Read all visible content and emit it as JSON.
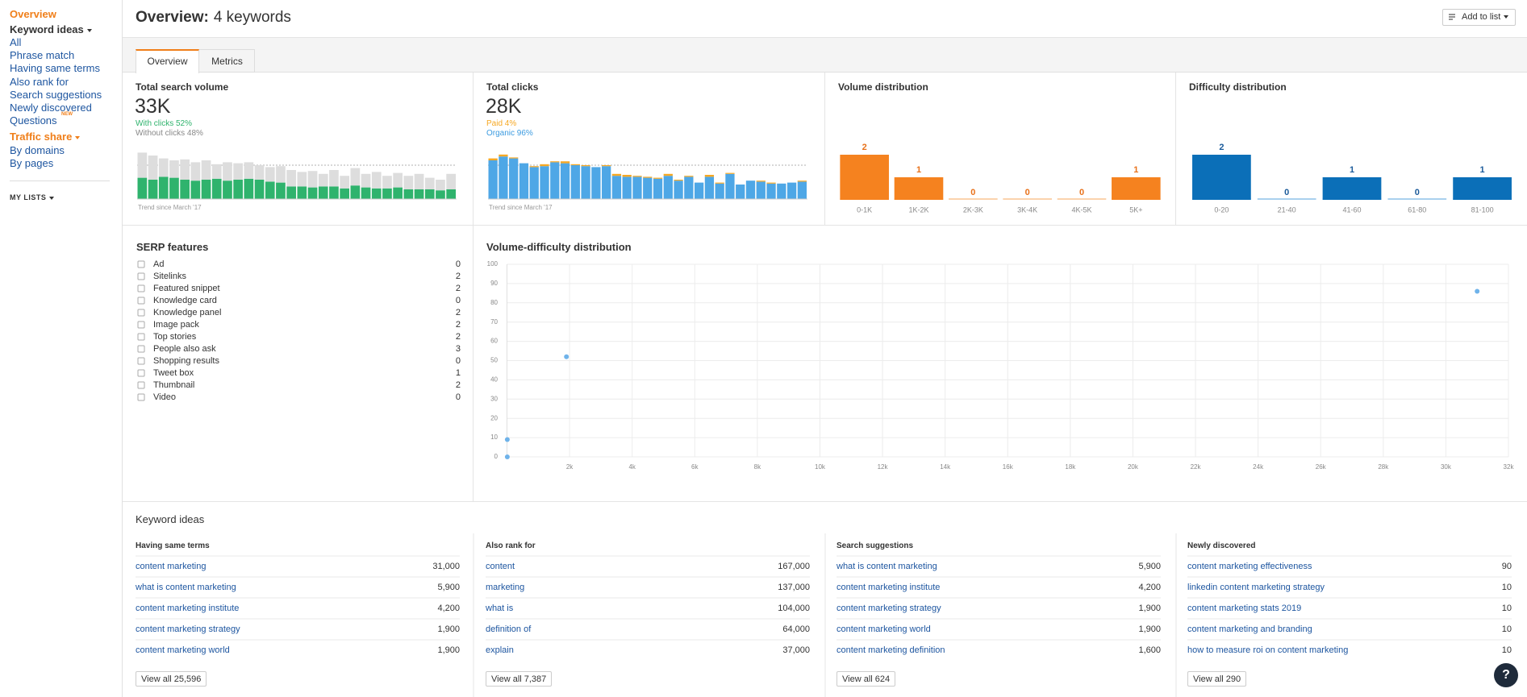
{
  "sidebar": {
    "overview": "Overview",
    "keyword_ideas": "Keyword ideas",
    "links": [
      "All",
      "Phrase match",
      "Having same terms",
      "Also rank for",
      "Search suggestions",
      "Newly discovered",
      "Questions"
    ],
    "new_badge": "NEW",
    "traffic_share": "Traffic share",
    "traffic_links": [
      "By domains",
      "By pages"
    ],
    "my_lists": "MY LISTS"
  },
  "header": {
    "title": "Overview:",
    "subtitle": "4 keywords",
    "button": "Add to list"
  },
  "tabs": [
    "Overview",
    "Metrics"
  ],
  "search_volume": {
    "title": "Total search volume",
    "value": "33K",
    "with_clicks": "With clicks 52%",
    "without_clicks": "Without clicks 48%",
    "trend_label": "Trend since March '17",
    "trend": {
      "type": "stacked-bar",
      "series": [
        {
          "color": "#2fb36d",
          "values": [
            22,
            20,
            23,
            22,
            20,
            19,
            20,
            21,
            19,
            20,
            21,
            20,
            18,
            17,
            13,
            13,
            12,
            13,
            13,
            11,
            14,
            12,
            11,
            11,
            12,
            10,
            10,
            10,
            9,
            10
          ]
        },
        {
          "color": "#dddddd",
          "values": [
            26,
            25,
            19,
            18,
            21,
            19,
            20,
            15,
            19,
            17,
            17,
            15,
            15,
            17,
            17,
            15,
            17,
            13,
            17,
            13,
            18,
            14,
            17,
            13,
            15,
            14,
            16,
            12,
            11,
            16
          ]
        }
      ]
    }
  },
  "clicks": {
    "title": "Total clicks",
    "value": "28K",
    "paid": "Paid 4%",
    "organic": "Organic 96%",
    "trend_label": "Trend since March '17",
    "trend": {
      "type": "stacked-bar",
      "series": [
        {
          "color": "#4ea7e6",
          "values": [
            40,
            44,
            42,
            37,
            33,
            34,
            38,
            37,
            35,
            34,
            33,
            34,
            24,
            23,
            23,
            22,
            21,
            24,
            19,
            23,
            17,
            23,
            16,
            26,
            15,
            19,
            18,
            16,
            16,
            17,
            18
          ]
        },
        {
          "color": "#f6a823",
          "values": [
            2,
            2,
            1,
            0,
            1,
            2,
            1,
            2,
            1,
            1,
            0,
            1,
            2,
            2,
            1,
            1,
            1,
            2,
            1,
            1,
            0,
            2,
            1,
            1,
            0,
            0,
            1,
            1,
            0,
            0,
            1
          ]
        }
      ]
    }
  },
  "volume_distribution": {
    "type": "bar",
    "title": "Volume distribution",
    "categories": [
      "0-1K",
      "1K-2K",
      "2K-3K",
      "3K-4K",
      "4K-5K",
      "5K+"
    ],
    "values": [
      2,
      1,
      0,
      0,
      0,
      1
    ],
    "color": "#f5821f",
    "label_color": "#e8711a",
    "zero_color": "#fbd3ad"
  },
  "difficulty_distribution": {
    "type": "bar",
    "title": "Difficulty distribution",
    "categories": [
      "0-20",
      "21-40",
      "41-60",
      "61-80",
      "81-100"
    ],
    "values": [
      2,
      0,
      1,
      0,
      1
    ],
    "color": "#0b6fb8",
    "label_color": "#1a5a9a",
    "zero_color": "#a9d0ee"
  },
  "serp_features": {
    "title": "SERP features",
    "rows": [
      [
        "Ad",
        0
      ],
      [
        "Sitelinks",
        2
      ],
      [
        "Featured snippet",
        2
      ],
      [
        "Knowledge card",
        0
      ],
      [
        "Knowledge panel",
        2
      ],
      [
        "Image pack",
        2
      ],
      [
        "Top stories",
        2
      ],
      [
        "People also ask",
        3
      ],
      [
        "Shopping results",
        0
      ],
      [
        "Tweet box",
        1
      ],
      [
        "Thumbnail",
        2
      ],
      [
        "Video",
        0
      ]
    ]
  },
  "scatter": {
    "type": "scatter",
    "title": "Volume-difficulty distribution",
    "x": [
      31000,
      1900,
      10,
      10
    ],
    "y": [
      86,
      52,
      9,
      0
    ],
    "xlim": [
      0,
      32000
    ],
    "ylim": [
      0,
      100
    ],
    "xticks": [
      {
        "value": 2000,
        "label": "2k"
      },
      {
        "value": 4000,
        "label": "4k"
      },
      {
        "value": 6000,
        "label": "6k"
      },
      {
        "value": 8000,
        "label": "8k"
      },
      {
        "value": 10000,
        "label": "10k"
      },
      {
        "value": 12000,
        "label": "12k"
      },
      {
        "value": 14000,
        "label": "14k"
      },
      {
        "value": 16000,
        "label": "16k"
      },
      {
        "value": 18000,
        "label": "18k"
      },
      {
        "value": 20000,
        "label": "20k"
      },
      {
        "value": 22000,
        "label": "22k"
      },
      {
        "value": 24000,
        "label": "24k"
      },
      {
        "value": 26000,
        "label": "26k"
      },
      {
        "value": 28000,
        "label": "28k"
      },
      {
        "value": 30000,
        "label": "30k"
      },
      {
        "value": 32000,
        "label": "32k"
      }
    ],
    "yticks": [
      0,
      10,
      20,
      30,
      40,
      50,
      60,
      70,
      80,
      90,
      100
    ],
    "color": "#6fb3ea",
    "grid": true
  },
  "keyword_ideas": {
    "title": "Keyword ideas",
    "columns": [
      {
        "title": "Having same terms",
        "rows": [
          [
            "content marketing",
            "31,000"
          ],
          [
            "what is content marketing",
            "5,900"
          ],
          [
            "content marketing institute",
            "4,200"
          ],
          [
            "content marketing strategy",
            "1,900"
          ],
          [
            "content marketing world",
            "1,900"
          ]
        ],
        "button": "View all 25,596"
      },
      {
        "title": "Also rank for",
        "rows": [
          [
            "content",
            "167,000"
          ],
          [
            "marketing",
            "137,000"
          ],
          [
            "what is",
            "104,000"
          ],
          [
            "definition of",
            "64,000"
          ],
          [
            "explain",
            "37,000"
          ]
        ],
        "button": "View all 7,387"
      },
      {
        "title": "Search suggestions",
        "rows": [
          [
            "what is content marketing",
            "5,900"
          ],
          [
            "content marketing institute",
            "4,200"
          ],
          [
            "content marketing strategy",
            "1,900"
          ],
          [
            "content marketing world",
            "1,900"
          ],
          [
            "content marketing definition",
            "1,600"
          ]
        ],
        "button": "View all 624"
      },
      {
        "title": "Newly discovered",
        "rows": [
          [
            "content marketing effectiveness",
            "90"
          ],
          [
            "linkedin content marketing strategy",
            "10"
          ],
          [
            "content marketing stats 2019",
            "10"
          ],
          [
            "content marketing and branding",
            "10"
          ],
          [
            "how to measure roi on content marketing",
            "10"
          ]
        ],
        "button": "View all 290"
      }
    ]
  },
  "help": "?"
}
